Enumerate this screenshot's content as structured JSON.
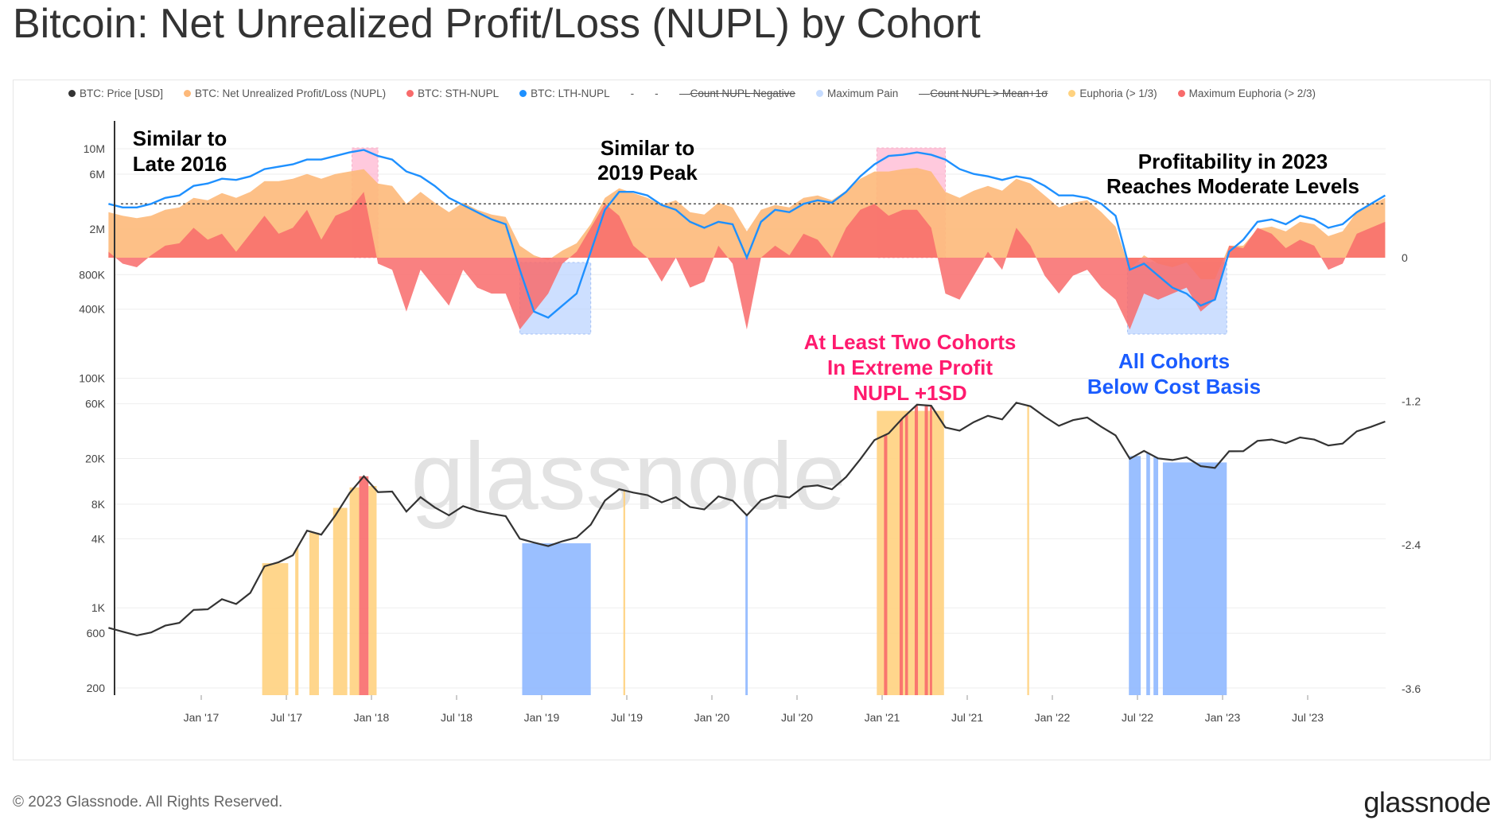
{
  "title": "Bitcoin: Net Unrealized Profit/Loss (NUPL) by Cohort",
  "legend": [
    {
      "label": "BTC: Price [USD]",
      "color": "#333333",
      "style": "dot"
    },
    {
      "label": "BTC: Net Unrealized Profit/Loss (NUPL)",
      "color": "#fdb97a",
      "style": "dot"
    },
    {
      "label": "BTC: STH-NUPL",
      "color": "#f86b6b",
      "style": "dot"
    },
    {
      "label": "BTC: LTH-NUPL",
      "color": "#1e90ff",
      "style": "dot"
    },
    {
      "label": "-",
      "color": "",
      "style": "plain"
    },
    {
      "label": "-",
      "color": "",
      "style": "plain"
    },
    {
      "label": "Count NUPL Negative",
      "color": "",
      "style": "strike"
    },
    {
      "label": "Maximum Pain",
      "color": "#c6dcff",
      "style": "dot"
    },
    {
      "label": "Count NUPL > Mean+1σ",
      "color": "",
      "style": "strike"
    },
    {
      "label": "Euphoria (> 1/3)",
      "color": "#ffd27f",
      "style": "dot"
    },
    {
      "label": "Maximum Euphoria (> 2/3)",
      "color": "#f86b6b",
      "style": "dot"
    }
  ],
  "annotations": {
    "late2016": [
      "Similar to",
      "Late 2016"
    ],
    "peak2019": [
      "Similar to",
      "2019 Peak"
    ],
    "moderate2023": [
      "Profitability in 2023",
      "Reaches Moderate Levels"
    ],
    "extreme": [
      "At Least Two Cohorts",
      "In Extreme Profit",
      "NUPL +1SD"
    ],
    "below": [
      "All Cohorts",
      "Below Cost Basis"
    ],
    "extreme_color": "#ff1a6e",
    "below_color": "#1a5cff"
  },
  "watermark": "glassnode",
  "footer": {
    "copyright": "© 2023 Glassnode. All Rights Reserved.",
    "logo": "glassnode"
  },
  "chart_data": {
    "type": "line",
    "title": "Bitcoin: Net Unrealized Profit/Loss (NUPL) by Cohort",
    "x_ticks": [
      "Jan '17",
      "Jul '17",
      "Jan '18",
      "Jul '18",
      "Jan '19",
      "Jul '19",
      "Jan '20",
      "Jul '20",
      "Jan '21",
      "Jul '21",
      "Jan '22",
      "Jul '22",
      "Jan '23",
      "Jul '23"
    ],
    "x_tick_dates": [
      "2017-01",
      "2017-07",
      "2018-01",
      "2018-07",
      "2019-01",
      "2019-07",
      "2020-01",
      "2020-07",
      "2021-01",
      "2021-07",
      "2022-01",
      "2022-07",
      "2023-01",
      "2023-07"
    ],
    "left_axis": {
      "scale": "log",
      "ticks": [
        "10M",
        "6M",
        "2M",
        "800K",
        "400K",
        "100K",
        "60K",
        "20K",
        "8K",
        "4K",
        "1K",
        "600",
        "200"
      ],
      "tick_values": [
        10000000,
        6000000,
        2000000,
        800000,
        400000,
        100000,
        60000,
        20000,
        8000,
        4000,
        1000,
        600,
        200
      ],
      "range": [
        200,
        10000000
      ]
    },
    "right_axis": {
      "scale": "linear",
      "ticks": [
        "0",
        "-1.2",
        "-2.4",
        "-3.6"
      ],
      "tick_values": [
        0,
        -1.2,
        -2.4,
        -3.6
      ]
    },
    "reference_line": 0.45,
    "grid": true,
    "legend_position": "top",
    "dates": [
      "2016-06",
      "2016-07",
      "2016-08",
      "2016-09",
      "2016-10",
      "2016-11",
      "2016-12",
      "2017-01",
      "2017-02",
      "2017-03",
      "2017-04",
      "2017-05",
      "2017-06",
      "2017-07",
      "2017-08",
      "2017-09",
      "2017-10",
      "2017-11",
      "2017-12",
      "2018-01",
      "2018-02",
      "2018-03",
      "2018-04",
      "2018-05",
      "2018-06",
      "2018-07",
      "2018-08",
      "2018-09",
      "2018-10",
      "2018-11",
      "2018-12",
      "2019-01",
      "2019-02",
      "2019-03",
      "2019-04",
      "2019-05",
      "2019-06",
      "2019-07",
      "2019-08",
      "2019-09",
      "2019-10",
      "2019-11",
      "2019-12",
      "2020-01",
      "2020-02",
      "2020-03",
      "2020-04",
      "2020-05",
      "2020-06",
      "2020-07",
      "2020-08",
      "2020-09",
      "2020-10",
      "2020-11",
      "2020-12",
      "2021-01",
      "2021-02",
      "2021-03",
      "2021-04",
      "2021-05",
      "2021-06",
      "2021-07",
      "2021-08",
      "2021-09",
      "2021-10",
      "2021-11",
      "2021-12",
      "2022-01",
      "2022-02",
      "2022-03",
      "2022-04",
      "2022-05",
      "2022-06",
      "2022-07",
      "2022-08",
      "2022-09",
      "2022-10",
      "2022-11",
      "2022-12",
      "2023-01",
      "2023-02",
      "2023-03",
      "2023-04",
      "2023-05",
      "2023-06",
      "2023-07",
      "2023-08",
      "2023-09",
      "2023-10",
      "2023-11",
      "2023-12"
    ],
    "series": [
      {
        "name": "BTC: Price [USD]",
        "axis": "left",
        "color": "#333333",
        "values": [
          670,
          620,
          575,
          610,
          700,
          740,
          960,
          970,
          1190,
          1080,
          1350,
          2300,
          2500,
          2870,
          4700,
          4340,
          6400,
          10000,
          14000,
          10200,
          10300,
          6900,
          9200,
          7500,
          6400,
          7700,
          7000,
          6600,
          6300,
          4000,
          3700,
          3450,
          3800,
          4100,
          5300,
          8600,
          10800,
          10100,
          9600,
          8300,
          9200,
          7550,
          7200,
          9350,
          8600,
          6400,
          8650,
          9500,
          9150,
          11350,
          11650,
          10780,
          13800,
          19700,
          29000,
          33100,
          45100,
          58900,
          57700,
          37300,
          35000,
          41500,
          47100,
          43800,
          61300,
          57000,
          46300,
          38500,
          43200,
          45500,
          37700,
          31800,
          19900,
          23300,
          20050,
          19400,
          20500,
          17150,
          16550,
          23100,
          23150,
          28500,
          29250,
          27200,
          30500,
          29250,
          25950,
          27000,
          34500,
          37700,
          42000
        ]
      },
      {
        "name": "BTC: Net Unrealized Profit/Loss (NUPL)",
        "axis": "right",
        "color": "#fdb97a",
        "values": [
          0.38,
          0.35,
          0.33,
          0.35,
          0.4,
          0.42,
          0.5,
          0.48,
          0.54,
          0.5,
          0.55,
          0.64,
          0.64,
          0.66,
          0.7,
          0.66,
          0.7,
          0.72,
          0.74,
          0.62,
          0.6,
          0.45,
          0.55,
          0.46,
          0.38,
          0.46,
          0.4,
          0.36,
          0.34,
          0.1,
          0.02,
          -0.02,
          0.06,
          0.12,
          0.28,
          0.5,
          0.58,
          0.54,
          0.5,
          0.44,
          0.48,
          0.38,
          0.36,
          0.46,
          0.42,
          0.22,
          0.4,
          0.44,
          0.42,
          0.5,
          0.52,
          0.48,
          0.56,
          0.66,
          0.72,
          0.72,
          0.74,
          0.75,
          0.72,
          0.55,
          0.5,
          0.56,
          0.6,
          0.56,
          0.66,
          0.62,
          0.52,
          0.42,
          0.46,
          0.48,
          0.38,
          0.26,
          -0.1,
          0.02,
          -0.05,
          -0.08,
          -0.04,
          -0.18,
          -0.18,
          0.1,
          0.1,
          0.24,
          0.26,
          0.22,
          0.3,
          0.28,
          0.18,
          0.22,
          0.38,
          0.44,
          0.5
        ]
      },
      {
        "name": "BTC: STH-NUPL",
        "axis": "right",
        "color": "#f86b6b",
        "values": [
          0.05,
          -0.05,
          -0.08,
          0.02,
          0.1,
          0.12,
          0.25,
          0.15,
          0.2,
          0.05,
          0.2,
          0.35,
          0.2,
          0.25,
          0.4,
          0.15,
          0.35,
          0.4,
          0.55,
          -0.05,
          -0.1,
          -0.45,
          -0.1,
          -0.25,
          -0.4,
          -0.1,
          -0.25,
          -0.3,
          -0.3,
          -0.6,
          -0.45,
          -0.3,
          -0.05,
          0.05,
          0.25,
          0.45,
          0.35,
          0.1,
          0.0,
          -0.2,
          0.0,
          -0.25,
          -0.2,
          0.1,
          -0.05,
          -0.6,
          0.0,
          0.1,
          0.02,
          0.2,
          0.15,
          0.0,
          0.25,
          0.4,
          0.45,
          0.35,
          0.4,
          0.4,
          0.25,
          -0.3,
          -0.35,
          -0.15,
          0.05,
          -0.1,
          0.25,
          0.1,
          -0.15,
          -0.3,
          -0.15,
          -0.1,
          -0.25,
          -0.35,
          -0.6,
          -0.3,
          -0.35,
          -0.3,
          -0.25,
          -0.45,
          -0.35,
          0.1,
          0.08,
          0.25,
          0.2,
          0.08,
          0.15,
          0.1,
          -0.1,
          -0.05,
          0.2,
          0.25,
          0.3
        ]
      },
      {
        "name": "BTC: LTH-NUPL",
        "axis": "right",
        "color": "#1e90ff",
        "values": [
          0.45,
          0.42,
          0.42,
          0.45,
          0.5,
          0.52,
          0.6,
          0.62,
          0.66,
          0.65,
          0.68,
          0.74,
          0.76,
          0.78,
          0.82,
          0.82,
          0.85,
          0.88,
          0.9,
          0.85,
          0.82,
          0.72,
          0.68,
          0.6,
          0.5,
          0.44,
          0.38,
          0.32,
          0.28,
          -0.1,
          -0.45,
          -0.5,
          -0.4,
          -0.3,
          0.05,
          0.4,
          0.55,
          0.55,
          0.52,
          0.44,
          0.4,
          0.3,
          0.25,
          0.3,
          0.28,
          0.0,
          0.3,
          0.4,
          0.38,
          0.45,
          0.48,
          0.46,
          0.55,
          0.68,
          0.78,
          0.85,
          0.86,
          0.88,
          0.86,
          0.82,
          0.74,
          0.7,
          0.68,
          0.65,
          0.68,
          0.66,
          0.6,
          0.52,
          0.52,
          0.5,
          0.45,
          0.35,
          -0.1,
          -0.05,
          -0.15,
          -0.25,
          -0.3,
          -0.4,
          -0.35,
          0.05,
          0.15,
          0.3,
          0.32,
          0.28,
          0.35,
          0.32,
          0.25,
          0.28,
          0.38,
          0.45,
          0.52
        ]
      }
    ],
    "bands": {
      "euphoria": {
        "color": "#ffd27f",
        "ranges": [
          [
            "2017-05-10",
            "2017-07-05"
          ],
          [
            "2017-07-20",
            "2017-07-27"
          ],
          [
            "2017-08-20",
            "2017-09-10"
          ],
          [
            "2017-10-10",
            "2017-11-10"
          ],
          [
            "2017-11-15",
            "2017-12-05"
          ],
          [
            "2017-12-25",
            "2018-01-12"
          ],
          [
            "2019-06-24",
            "2019-06-28"
          ],
          [
            "2020-12-20",
            "2021-05-12"
          ],
          [
            "2021-11-08",
            "2021-11-12"
          ]
        ]
      },
      "maximum_euphoria": {
        "color": "#f86b6b",
        "ranges": [
          [
            "2017-12-05",
            "2017-12-25"
          ],
          [
            "2021-01-05",
            "2021-01-12"
          ],
          [
            "2021-02-08",
            "2021-02-15"
          ],
          [
            "2021-02-20",
            "2021-02-26"
          ],
          [
            "2021-03-10",
            "2021-03-17"
          ],
          [
            "2021-04-01",
            "2021-04-08"
          ],
          [
            "2021-04-12",
            "2021-04-17"
          ]
        ]
      },
      "maximum_pain": {
        "color": "#8fb8ff",
        "ranges": [
          [
            "2018-11-20",
            "2019-04-15"
          ],
          [
            "2020-03-12",
            "2020-03-17"
          ],
          [
            "2022-06-13",
            "2022-07-08"
          ],
          [
            "2022-07-20",
            "2022-07-28"
          ],
          [
            "2022-08-05",
            "2022-08-15"
          ],
          [
            "2022-08-25",
            "2023-01-10"
          ]
        ]
      }
    },
    "highlight_boxes": {
      "extreme_profit": {
        "color": "#ffb3cf",
        "ranges": [
          [
            "2017-11-20",
            "2018-01-15"
          ],
          [
            "2020-12-20",
            "2021-05-15"
          ]
        ]
      },
      "below_cost": {
        "color": "#b8d2ff",
        "ranges": [
          [
            "2018-11-15",
            "2019-04-15"
          ],
          [
            "2022-06-10",
            "2023-01-10"
          ]
        ]
      }
    }
  }
}
